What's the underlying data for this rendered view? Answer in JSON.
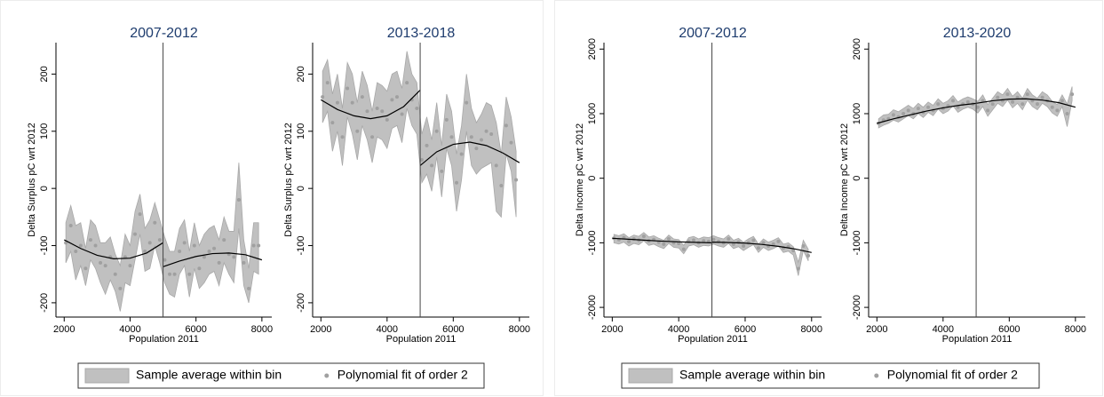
{
  "chart_data": [
    {
      "type": "scatter",
      "title": "2007-2012",
      "xlabel": "Population 2011",
      "ylabel": "Delta Surplus pC wrt 2012",
      "xlim": [
        1750,
        8300
      ],
      "ylim": [
        -225,
        255
      ],
      "xticks": [
        2000,
        4000,
        6000,
        8000
      ],
      "yticks": [
        -200,
        -100,
        0,
        100,
        200
      ],
      "cutoff": 5000,
      "legend": "bottom",
      "x": [
        2050,
        2200,
        2350,
        2500,
        2650,
        2800,
        2950,
        3100,
        3250,
        3400,
        3550,
        3700,
        3850,
        4000,
        4150,
        4300,
        4450,
        4600,
        4750,
        4900,
        5050,
        5200,
        5350,
        5500,
        5650,
        5800,
        5950,
        6100,
        6250,
        6400,
        6550,
        6700,
        6850,
        7000,
        7150,
        7300,
        7450,
        7600,
        7750,
        7900
      ],
      "series": [
        {
          "name": "Sample average within bin",
          "type": "band",
          "color": "#c0c0c0",
          "lower": [
            -130,
            -110,
            -160,
            -135,
            -170,
            -125,
            -140,
            -165,
            -185,
            -160,
            -180,
            -215,
            -165,
            -170,
            -125,
            -80,
            -145,
            -140,
            -100,
            -130,
            -165,
            -185,
            -190,
            -150,
            -135,
            -190,
            -140,
            -175,
            -165,
            -150,
            -145,
            -170,
            -130,
            -150,
            -165,
            -70,
            -170,
            -200,
            -145,
            -150
          ],
          "upper": [
            -60,
            -30,
            -65,
            -60,
            -105,
            -55,
            -65,
            -95,
            -95,
            -85,
            -115,
            -135,
            -80,
            -100,
            -40,
            -10,
            -70,
            -55,
            -25,
            -55,
            -85,
            -110,
            -110,
            -70,
            -55,
            -110,
            -60,
            -100,
            -80,
            -70,
            -65,
            -90,
            -50,
            -75,
            -75,
            45,
            -90,
            -140,
            -60,
            -60
          ]
        },
        {
          "name": "Polynomial fit of order 2",
          "type": "scatter",
          "color": "#a0a0a0",
          "values": [
            -95,
            -65,
            -110,
            -100,
            -140,
            -90,
            -100,
            -130,
            -135,
            -120,
            -150,
            -175,
            -120,
            -135,
            -80,
            -45,
            -110,
            -95,
            -60,
            -90,
            -125,
            -150,
            -150,
            -110,
            -95,
            -150,
            -100,
            -140,
            -120,
            -110,
            -105,
            -130,
            -90,
            -115,
            -120,
            -20,
            -130,
            -175,
            -100,
            -100
          ]
        },
        {
          "type": "line",
          "color": "#000000",
          "x": [
            2000,
            2500,
            3000,
            3500,
            4000,
            4500,
            5000,
            5000,
            5000,
            5500,
            6000,
            6500,
            7000,
            7500,
            8000
          ],
          "values": [
            -90,
            -105,
            -117,
            -123,
            -122,
            -113,
            -95,
            null,
            -137,
            -127,
            -119,
            -114,
            -113,
            -116,
            -125
          ]
        }
      ]
    },
    {
      "type": "scatter",
      "title": "2013-2018",
      "xlabel": "Population 2011",
      "ylabel": "Delta Surplus pC wrt 2012",
      "xlim": [
        1750,
        8300
      ],
      "ylim": [
        -225,
        255
      ],
      "xticks": [
        2000,
        4000,
        6000,
        8000
      ],
      "yticks": [
        -200,
        -100,
        0,
        100,
        200
      ],
      "cutoff": 5000,
      "x": [
        2050,
        2200,
        2350,
        2500,
        2650,
        2800,
        2950,
        3100,
        3250,
        3400,
        3550,
        3700,
        3850,
        4000,
        4150,
        4300,
        4450,
        4600,
        4750,
        4900,
        5050,
        5200,
        5350,
        5500,
        5650,
        5800,
        5950,
        6100,
        6250,
        6400,
        6550,
        6700,
        6850,
        7000,
        7150,
        7300,
        7450,
        7600,
        7750,
        7900
      ],
      "series": [
        {
          "type": "band",
          "color": "#c0c0c0",
          "lower": [
            115,
            135,
            65,
            100,
            40,
            125,
            95,
            50,
            110,
            85,
            45,
            90,
            85,
            70,
            105,
            110,
            80,
            140,
            110,
            95,
            10,
            25,
            -5,
            55,
            -15,
            70,
            40,
            -40,
            15,
            100,
            40,
            25,
            35,
            40,
            45,
            -40,
            -50,
            60,
            30,
            -50
          ],
          "upper": [
            205,
            225,
            165,
            200,
            140,
            220,
            200,
            150,
            205,
            180,
            135,
            185,
            180,
            170,
            200,
            205,
            175,
            240,
            200,
            185,
            95,
            125,
            85,
            150,
            75,
            165,
            135,
            60,
            110,
            200,
            140,
            115,
            130,
            150,
            145,
            115,
            60,
            160,
            125,
            65
          ]
        },
        {
          "type": "scatter",
          "color": "#a0a0a0",
          "values": [
            160,
            185,
            115,
            150,
            90,
            175,
            150,
            100,
            160,
            135,
            90,
            140,
            135,
            120,
            155,
            160,
            130,
            185,
            155,
            140,
            50,
            75,
            40,
            100,
            30,
            120,
            90,
            10,
            60,
            150,
            90,
            70,
            85,
            100,
            95,
            40,
            5,
            110,
            80,
            15
          ]
        },
        {
          "type": "line",
          "color": "#000000",
          "x": [
            2000,
            2500,
            3000,
            3500,
            4000,
            4500,
            5000,
            5000,
            5000,
            5500,
            6000,
            6500,
            7000,
            7500,
            8000
          ],
          "values": [
            155,
            138,
            127,
            122,
            127,
            143,
            172,
            null,
            40,
            64,
            77,
            81,
            75,
            62,
            45
          ]
        }
      ]
    },
    {
      "type": "scatter",
      "title": "2007-2012",
      "xlabel": "Population 2011",
      "ylabel": "Delta Income pC wrt 2012",
      "xlim": [
        1750,
        8300
      ],
      "ylim": [
        -2150,
        2100
      ],
      "xticks": [
        2000,
        4000,
        6000,
        8000
      ],
      "yticks": [
        -2000,
        -1000,
        0,
        1000,
        2000
      ],
      "cutoff": 5000,
      "legend": "bottom",
      "x": [
        2050,
        2200,
        2350,
        2500,
        2650,
        2800,
        2950,
        3100,
        3250,
        3400,
        3550,
        3700,
        3850,
        4000,
        4150,
        4300,
        4450,
        4600,
        4750,
        4900,
        5050,
        5200,
        5350,
        5500,
        5650,
        5800,
        5950,
        6100,
        6250,
        6400,
        6550,
        6700,
        6850,
        7000,
        7150,
        7300,
        7450,
        7600,
        7750,
        7900
      ],
      "series": [
        {
          "name": "Sample average within bin",
          "type": "band",
          "color": "#c0c0c0",
          "lower": [
            -1000,
            -1020,
            -990,
            -1050,
            -1010,
            -1030,
            -970,
            -1040,
            -1020,
            -1060,
            -1090,
            -1010,
            -1070,
            -1080,
            -1170,
            -1050,
            -1030,
            -1070,
            -1040,
            -1050,
            -1020,
            -1050,
            -1070,
            -1010,
            -1090,
            -1060,
            -1120,
            -1070,
            -1030,
            -1150,
            -1070,
            -1120,
            -1090,
            -1050,
            -1150,
            -1130,
            -1190,
            -1510,
            -1120,
            -1280
          ],
          "upper": [
            -870,
            -890,
            -860,
            -920,
            -880,
            -900,
            -840,
            -910,
            -890,
            -930,
            -960,
            -880,
            -940,
            -950,
            -1040,
            -920,
            -900,
            -940,
            -910,
            -920,
            -890,
            -920,
            -940,
            -880,
            -960,
            -930,
            -990,
            -940,
            -900,
            -1020,
            -940,
            -990,
            -960,
            -920,
            -1020,
            -1000,
            -1060,
            -1300,
            -960,
            -1100
          ]
        },
        {
          "name": "Polynomial fit of order 2",
          "type": "scatter",
          "color": "#a0a0a0",
          "values": [
            -930,
            -950,
            -920,
            -980,
            -940,
            -960,
            -900,
            -970,
            -950,
            -990,
            -1020,
            -940,
            -1000,
            -1010,
            -1100,
            -980,
            -960,
            -1000,
            -970,
            -980,
            -950,
            -980,
            -1000,
            -940,
            -1020,
            -990,
            -1050,
            -1000,
            -960,
            -1080,
            -1000,
            -1050,
            -1020,
            -980,
            -1080,
            -1060,
            -1120,
            -1400,
            -1050,
            -1200
          ]
        },
        {
          "type": "line",
          "color": "#000000",
          "x": [
            2000,
            2500,
            3000,
            3500,
            4000,
            4500,
            5000,
            5000,
            5000,
            5500,
            6000,
            6500,
            7000,
            7500,
            8000
          ],
          "values": [
            -930,
            -945,
            -960,
            -975,
            -985,
            -993,
            -1000,
            null,
            -990,
            -995,
            -1005,
            -1025,
            -1055,
            -1095,
            -1150
          ]
        }
      ]
    },
    {
      "type": "scatter",
      "title": "2013-2020",
      "xlabel": "Population 2011",
      "ylabel": "Delta Income pC wrt 2012",
      "xlim": [
        1750,
        8300
      ],
      "ylim": [
        -2150,
        2100
      ],
      "xticks": [
        2000,
        4000,
        6000,
        8000
      ],
      "yticks": [
        -2000,
        -1000,
        0,
        1000,
        2000
      ],
      "cutoff": 5000,
      "x": [
        2050,
        2200,
        2350,
        2500,
        2650,
        2800,
        2950,
        3100,
        3250,
        3400,
        3550,
        3700,
        3850,
        4000,
        4150,
        4300,
        4450,
        4600,
        4750,
        4900,
        5050,
        5200,
        5350,
        5500,
        5650,
        5800,
        5950,
        6100,
        6250,
        6400,
        6550,
        6700,
        6850,
        7000,
        7150,
        7300,
        7450,
        7600,
        7750,
        7900
      ],
      "series": [
        {
          "type": "band",
          "color": "#c0c0c0",
          "lower": [
            780,
            820,
            850,
            900,
            870,
            920,
            970,
            920,
            1000,
            940,
            1020,
            970,
            1070,
            1000,
            1040,
            1120,
            1020,
            1070,
            1100,
            1070,
            1010,
            1110,
            960,
            1060,
            1160,
            1110,
            1210,
            1090,
            1160,
            1060,
            1210,
            1110,
            1060,
            1160,
            1110,
            1010,
            960,
            1110,
            800,
            1200
          ],
          "upper": [
            920,
            980,
            990,
            1060,
            1030,
            1080,
            1130,
            1080,
            1160,
            1100,
            1180,
            1130,
            1230,
            1160,
            1200,
            1280,
            1180,
            1230,
            1260,
            1230,
            1190,
            1290,
            1140,
            1240,
            1340,
            1290,
            1390,
            1270,
            1340,
            1240,
            1390,
            1290,
            1240,
            1340,
            1290,
            1190,
            1140,
            1290,
            1150,
            1420
          ]
        },
        {
          "type": "scatter",
          "color": "#a0a0a0",
          "values": [
            850,
            900,
            920,
            980,
            950,
            1000,
            1050,
            1000,
            1080,
            1020,
            1100,
            1050,
            1150,
            1080,
            1120,
            1200,
            1100,
            1150,
            1180,
            1150,
            1100,
            1200,
            1050,
            1150,
            1250,
            1200,
            1300,
            1180,
            1250,
            1150,
            1300,
            1200,
            1150,
            1250,
            1200,
            1100,
            1050,
            1200,
            1000,
            1300
          ]
        },
        {
          "type": "line",
          "color": "#000000",
          "x": [
            2000,
            2500,
            3000,
            3500,
            4000,
            4500,
            5000,
            5000,
            5000,
            5500,
            6000,
            6500,
            7000,
            7500,
            8000
          ],
          "values": [
            850,
            920,
            980,
            1040,
            1090,
            1130,
            1160,
            null,
            1160,
            1200,
            1225,
            1230,
            1210,
            1170,
            1100
          ]
        }
      ]
    }
  ]
}
